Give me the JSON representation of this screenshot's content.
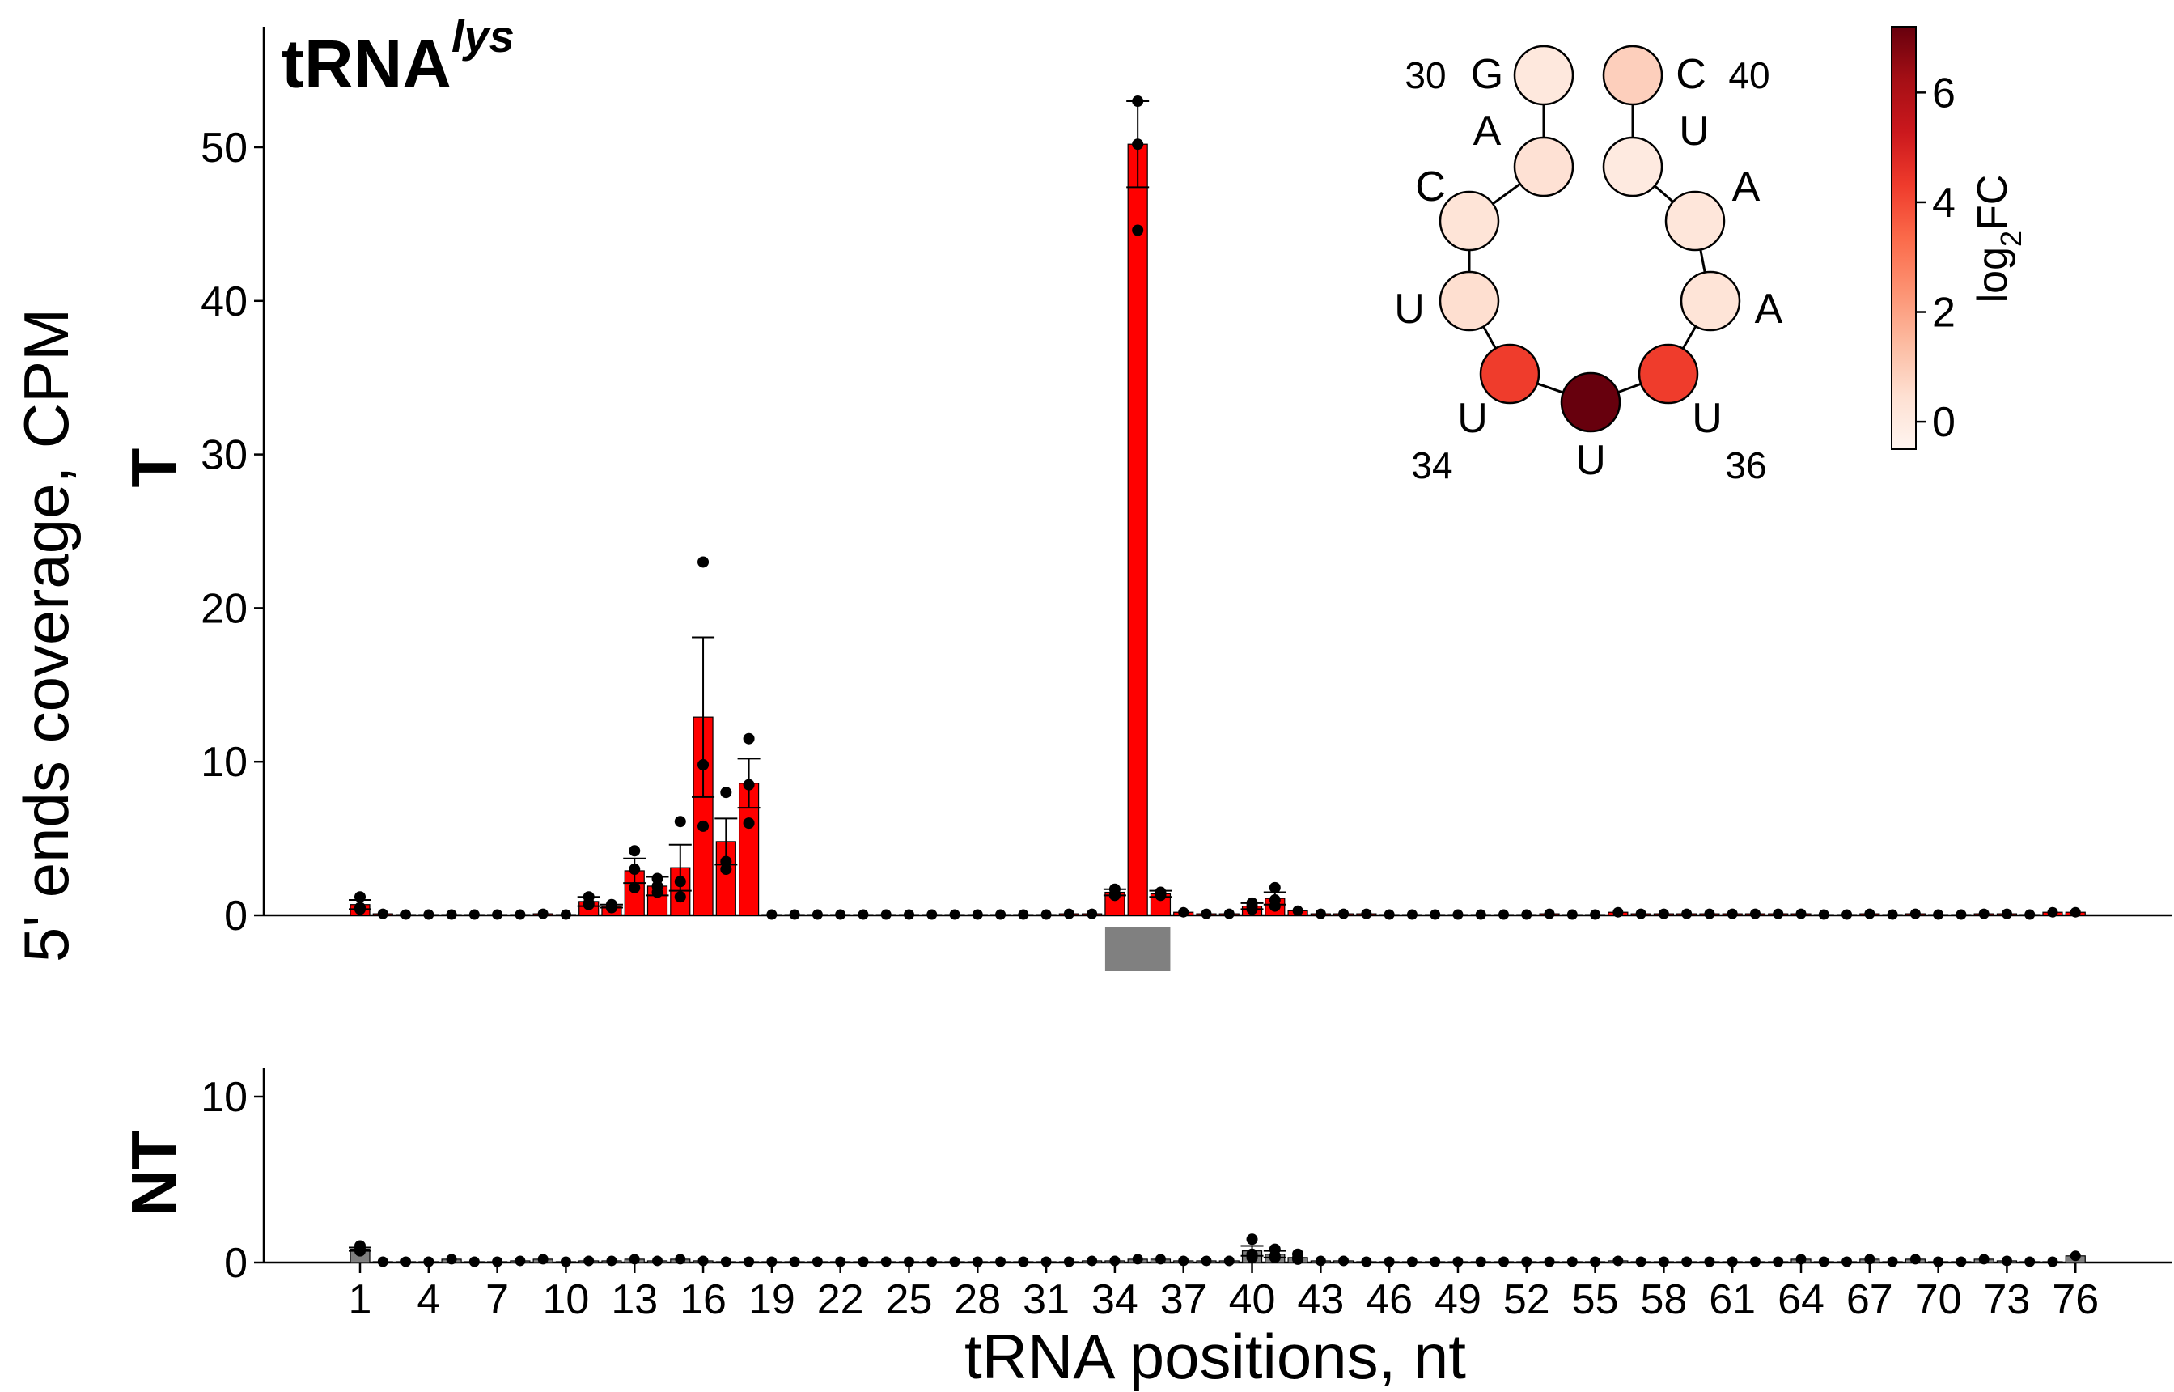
{
  "figure": {
    "title_main": "tRNA",
    "title_sup": "lys",
    "ylabel": "5' ends coverage, CPM",
    "xlabel": "tRNA positions, nt",
    "top_panel_label": "T",
    "bottom_panel_label": "NT",
    "colorbar_label_main": "log",
    "colorbar_label_sub": "2",
    "colorbar_label_tail": "FC"
  },
  "colors": {
    "bar_T": "#ff0000",
    "bar_NT": "#808080",
    "anticodon_marker": "#808080",
    "points": "#000000"
  },
  "chart_data": [
    {
      "type": "bar",
      "panel": "T",
      "x": [
        1,
        2,
        3,
        4,
        5,
        6,
        7,
        8,
        9,
        10,
        11,
        12,
        13,
        14,
        15,
        16,
        17,
        18,
        19,
        20,
        21,
        22,
        23,
        24,
        25,
        26,
        27,
        28,
        29,
        30,
        31,
        32,
        33,
        34,
        35,
        36,
        37,
        38,
        39,
        40,
        41,
        42,
        43,
        44,
        45,
        46,
        47,
        48,
        49,
        50,
        51,
        52,
        53,
        54,
        55,
        56,
        57,
        58,
        59,
        60,
        61,
        62,
        63,
        64,
        65,
        66,
        67,
        68,
        69,
        70,
        71,
        72,
        73,
        74,
        75,
        76
      ],
      "values": [
        0.7,
        0.1,
        0.05,
        0.05,
        0.05,
        0.05,
        0.05,
        0.05,
        0.1,
        0.05,
        0.9,
        0.6,
        2.9,
        1.9,
        3.1,
        12.9,
        4.8,
        8.6,
        0.05,
        0.05,
        0.05,
        0.05,
        0.05,
        0.05,
        0.05,
        0.05,
        0.05,
        0.05,
        0.05,
        0.05,
        0.05,
        0.1,
        0.1,
        1.5,
        50.2,
        1.4,
        0.2,
        0.1,
        0.1,
        0.6,
        1.1,
        0.3,
        0.1,
        0.1,
        0.1,
        0.05,
        0.05,
        0.05,
        0.05,
        0.05,
        0.05,
        0.05,
        0.1,
        0.05,
        0.05,
        0.2,
        0.1,
        0.1,
        0.1,
        0.1,
        0.1,
        0.1,
        0.1,
        0.1,
        0.05,
        0.05,
        0.1,
        0.05,
        0.1,
        0.05,
        0.05,
        0.1,
        0.1,
        0.05,
        0.2,
        0.2
      ],
      "errors": [
        0.3,
        0,
        0,
        0,
        0,
        0,
        0,
        0,
        0,
        0,
        0.3,
        0.1,
        0.8,
        0.6,
        1.5,
        5.2,
        1.5,
        1.6,
        0,
        0,
        0,
        0,
        0,
        0,
        0,
        0,
        0,
        0,
        0,
        0,
        0,
        0,
        0,
        0.2,
        2.8,
        0.2,
        0,
        0,
        0,
        0.2,
        0.4,
        0,
        0,
        0,
        0,
        0,
        0,
        0,
        0,
        0,
        0,
        0,
        0,
        0,
        0,
        0,
        0,
        0,
        0,
        0,
        0,
        0,
        0,
        0,
        0,
        0,
        0,
        0,
        0,
        0,
        0,
        0,
        0,
        0,
        0,
        0
      ],
      "replicates": {
        "1": [
          1.2,
          0.5,
          0.4
        ],
        "11": [
          1.2,
          0.8,
          0.7
        ],
        "12": [
          0.6,
          0.7,
          0.5
        ],
        "13": [
          4.2,
          3.0,
          1.8
        ],
        "14": [
          2.4,
          1.9,
          1.5
        ],
        "15": [
          6.1,
          2.2,
          1.2
        ],
        "16": [
          23.0,
          9.8,
          5.8
        ],
        "17": [
          8.0,
          3.5,
          3.0
        ],
        "18": [
          11.5,
          8.5,
          6.0
        ],
        "34": [
          1.7,
          1.4,
          1.3
        ],
        "35": [
          53.0,
          50.2,
          44.6
        ],
        "36": [
          1.5,
          1.4,
          1.3
        ],
        "40": [
          0.8,
          0.6,
          0.4
        ],
        "41": [
          1.8,
          1.0,
          0.6
        ]
      },
      "anticodon_positions": [
        34,
        35,
        36
      ],
      "xticks": [
        1,
        4,
        7,
        10,
        13,
        16,
        19,
        22,
        25,
        28,
        31,
        34,
        37,
        40,
        43,
        46,
        49,
        52,
        55,
        58,
        61,
        64,
        67,
        70,
        73,
        76
      ],
      "ylim": [
        0,
        58
      ],
      "yticks": [
        0,
        10,
        20,
        30,
        40,
        50
      ]
    },
    {
      "type": "bar",
      "panel": "NT",
      "x": [
        1,
        2,
        3,
        4,
        5,
        6,
        7,
        8,
        9,
        10,
        11,
        12,
        13,
        14,
        15,
        16,
        17,
        18,
        19,
        20,
        21,
        22,
        23,
        24,
        25,
        26,
        27,
        28,
        29,
        30,
        31,
        32,
        33,
        34,
        35,
        36,
        37,
        38,
        39,
        40,
        41,
        42,
        43,
        44,
        45,
        46,
        47,
        48,
        49,
        50,
        51,
        52,
        53,
        54,
        55,
        56,
        57,
        58,
        59,
        60,
        61,
        62,
        63,
        64,
        65,
        66,
        67,
        68,
        69,
        70,
        71,
        72,
        73,
        74,
        75,
        76
      ],
      "values": [
        0.8,
        0.05,
        0.05,
        0.05,
        0.2,
        0.05,
        0.05,
        0.1,
        0.2,
        0.05,
        0.1,
        0.1,
        0.2,
        0.1,
        0.2,
        0.1,
        0.05,
        0.05,
        0.05,
        0.05,
        0.05,
        0.05,
        0.05,
        0.05,
        0.05,
        0.05,
        0.05,
        0.05,
        0.05,
        0.05,
        0.05,
        0.05,
        0.1,
        0.1,
        0.2,
        0.2,
        0.1,
        0.1,
        0.1,
        0.7,
        0.5,
        0.3,
        0.1,
        0.1,
        0.05,
        0.05,
        0.05,
        0.05,
        0.05,
        0.05,
        0.05,
        0.05,
        0.05,
        0.05,
        0.05,
        0.1,
        0.05,
        0.05,
        0.05,
        0.05,
        0.05,
        0.05,
        0.05,
        0.2,
        0.05,
        0.05,
        0.2,
        0.05,
        0.2,
        0.05,
        0.05,
        0.2,
        0.1,
        0.05,
        0.05,
        0.4
      ],
      "errors": [
        0.1,
        0,
        0,
        0,
        0,
        0,
        0,
        0,
        0,
        0,
        0,
        0,
        0,
        0,
        0,
        0,
        0,
        0,
        0,
        0,
        0,
        0,
        0,
        0,
        0,
        0,
        0,
        0,
        0,
        0,
        0,
        0,
        0,
        0,
        0,
        0,
        0,
        0,
        0,
        0.3,
        0.2,
        0,
        0,
        0,
        0,
        0,
        0,
        0,
        0,
        0,
        0,
        0,
        0,
        0,
        0,
        0,
        0,
        0,
        0,
        0,
        0,
        0,
        0,
        0,
        0,
        0,
        0,
        0,
        0,
        0,
        0,
        0,
        0,
        0,
        0,
        0
      ],
      "replicates": {
        "1": [
          1.0,
          0.8,
          0.7
        ],
        "40": [
          1.4,
          0.5,
          0.3
        ],
        "41": [
          0.8,
          0.4,
          0.3
        ],
        "42": [
          0.5,
          0.3,
          0.2
        ]
      },
      "xticks": [
        1,
        4,
        7,
        10,
        13,
        16,
        19,
        22,
        25,
        28,
        31,
        34,
        37,
        40,
        43,
        46,
        49,
        52,
        55,
        58,
        61,
        64,
        67,
        70,
        73,
        76
      ],
      "ylim": [
        0,
        11
      ],
      "yticks": [
        0,
        10
      ]
    },
    {
      "type": "heatmap",
      "panel": "anticodon-loop inset",
      "colorbar_range": [
        -0.5,
        7.2
      ],
      "colorbar_ticks": [
        0,
        2,
        4,
        6
      ],
      "nodes": [
        {
          "pos": 30,
          "nt": "G",
          "log2fc": 0.1,
          "label": "30"
        },
        {
          "pos": 31,
          "nt": "A",
          "log2fc": 0.4
        },
        {
          "pos": 32,
          "nt": "C",
          "log2fc": 0.3
        },
        {
          "pos": 33,
          "nt": "U",
          "log2fc": 0.5
        },
        {
          "pos": 34,
          "nt": "U",
          "log2fc": 4.3,
          "label": "34"
        },
        {
          "pos": 35,
          "nt": "U",
          "log2fc": 7.2
        },
        {
          "pos": 36,
          "nt": "U",
          "log2fc": 4.3,
          "label": "36"
        },
        {
          "pos": 37,
          "nt": "A",
          "log2fc": 0.3
        },
        {
          "pos": 38,
          "nt": "A",
          "log2fc": 0.2
        },
        {
          "pos": 39,
          "nt": "U",
          "log2fc": 0.0
        },
        {
          "pos": 40,
          "nt": "C",
          "log2fc": 0.9,
          "label": "40"
        }
      ]
    }
  ]
}
